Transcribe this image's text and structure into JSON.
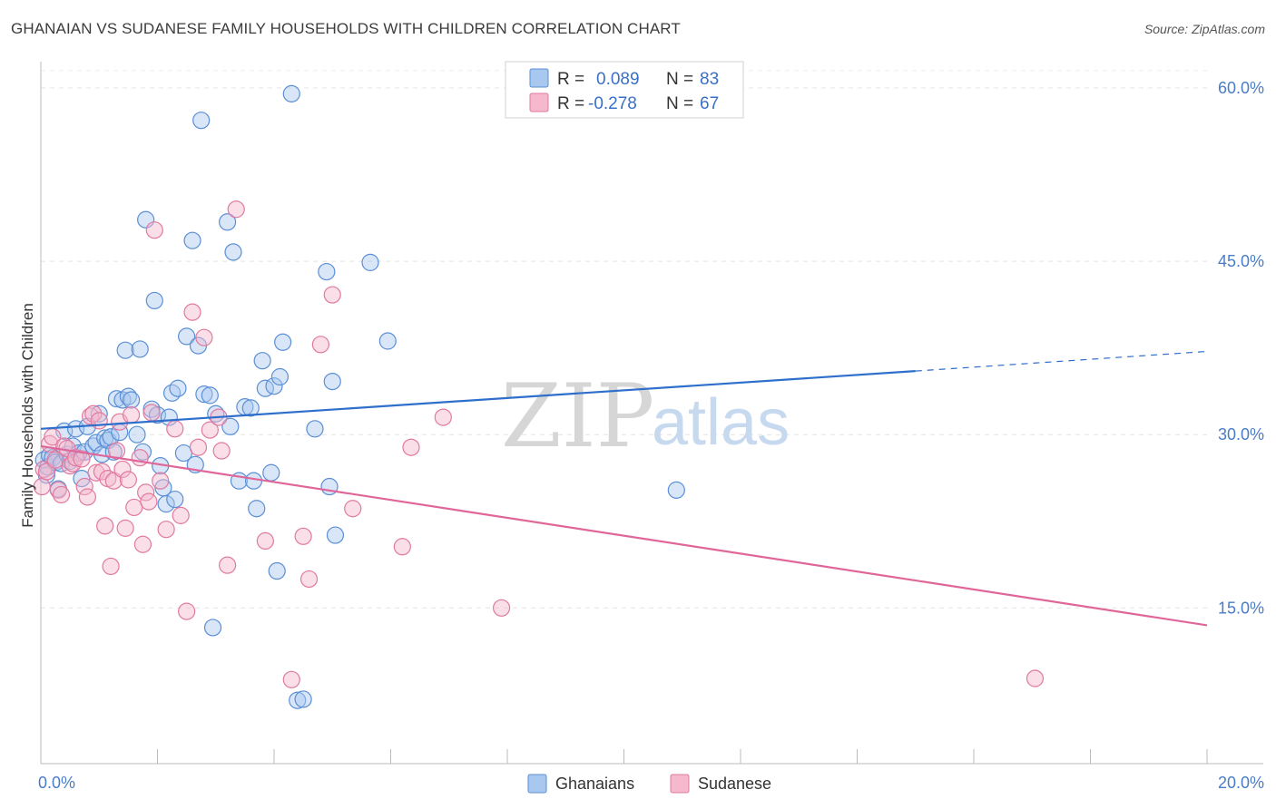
{
  "header": {
    "title": "GHANAIAN VS SUDANESE FAMILY HOUSEHOLDS WITH CHILDREN CORRELATION CHART",
    "source": "Source: ZipAtlas.com"
  },
  "watermark": {
    "zip": "ZIP",
    "atlas": "atlas"
  },
  "legend": {
    "r_label": "R =",
    "n_label": "N =",
    "rows": [
      {
        "name": "Ghanaians",
        "r": "0.089",
        "n": "83",
        "color": "#a8c8f0",
        "stroke": "#5a8fd6"
      },
      {
        "name": "Sudanese",
        "r": "-0.278",
        "n": "67",
        "color": "#f5b8cc",
        "stroke": "#e07aa0"
      }
    ]
  },
  "chart_data": {
    "type": "scatter",
    "title": "GHANAIAN VS SUDANESE FAMILY HOUSEHOLDS WITH CHILDREN CORRELATION CHART",
    "xlabel": "",
    "ylabel": "Family Households with Children",
    "xlim": [
      0,
      20
    ],
    "ylim": [
      0,
      61
    ],
    "x_tick_labels": [
      "0.0%",
      "20.0%"
    ],
    "y_ticks": [
      15,
      30,
      45,
      60
    ],
    "y_tick_labels": [
      "15.0%",
      "30.0%",
      "45.0%",
      "60.0%"
    ],
    "grid": "dashed horizontal",
    "series": [
      {
        "name": "Ghanaians",
        "color": "#5a8fd6",
        "fill": "rgba(168,200,240,0.45)",
        "trend": {
          "x0": 0,
          "y0": 30.5,
          "x1": 15,
          "y1": 35.5,
          "dash_to_x": 20,
          "dash_to_y": 37.2
        },
        "points": [
          [
            0.05,
            27.8
          ],
          [
            0.1,
            26.5
          ],
          [
            0.12,
            27.2
          ],
          [
            0.15,
            28.2
          ],
          [
            0.2,
            28
          ],
          [
            0.25,
            27.6
          ],
          [
            0.3,
            25.3
          ],
          [
            0.35,
            27.5
          ],
          [
            0.4,
            30.3
          ],
          [
            0.45,
            28.3
          ],
          [
            0.5,
            27.7
          ],
          [
            0.55,
            29
          ],
          [
            0.6,
            30.5
          ],
          [
            0.65,
            28.4
          ],
          [
            0.7,
            26.2
          ],
          [
            0.75,
            28.5
          ],
          [
            0.8,
            30.7
          ],
          [
            0.9,
            29
          ],
          [
            0.95,
            29.3
          ],
          [
            1,
            31.8
          ],
          [
            1.05,
            28.3
          ],
          [
            1.1,
            29.7
          ],
          [
            1.15,
            29.5
          ],
          [
            1.2,
            29.8
          ],
          [
            1.25,
            28.5
          ],
          [
            1.3,
            33.1
          ],
          [
            1.35,
            30.2
          ],
          [
            1.4,
            33
          ],
          [
            1.45,
            37.3
          ],
          [
            1.5,
            33.3
          ],
          [
            1.55,
            33
          ],
          [
            1.65,
            30
          ],
          [
            1.7,
            37.4
          ],
          [
            1.75,
            28.5
          ],
          [
            1.8,
            48.6
          ],
          [
            1.9,
            32.2
          ],
          [
            1.95,
            41.6
          ],
          [
            2,
            31.7
          ],
          [
            2.05,
            27.3
          ],
          [
            2.1,
            25.4
          ],
          [
            2.15,
            24
          ],
          [
            2.2,
            31.5
          ],
          [
            2.25,
            33.6
          ],
          [
            2.3,
            24.4
          ],
          [
            2.35,
            34
          ],
          [
            2.45,
            28.4
          ],
          [
            2.5,
            38.5
          ],
          [
            2.6,
            46.8
          ],
          [
            2.65,
            27.4
          ],
          [
            2.7,
            37.7
          ],
          [
            2.75,
            57.2
          ],
          [
            2.8,
            33.5
          ],
          [
            2.9,
            33.4
          ],
          [
            2.95,
            13.3
          ],
          [
            3,
            31.8
          ],
          [
            3.2,
            48.4
          ],
          [
            3.25,
            30.7
          ],
          [
            3.3,
            45.8
          ],
          [
            3.4,
            26
          ],
          [
            3.5,
            32.4
          ],
          [
            3.6,
            32.3
          ],
          [
            3.65,
            26
          ],
          [
            3.7,
            23.6
          ],
          [
            3.8,
            36.4
          ],
          [
            3.85,
            34
          ],
          [
            3.95,
            26.7
          ],
          [
            4,
            34.2
          ],
          [
            4.05,
            18.2
          ],
          [
            4.1,
            35
          ],
          [
            4.15,
            38
          ],
          [
            4.3,
            59.5
          ],
          [
            4.4,
            7
          ],
          [
            4.5,
            7.1
          ],
          [
            4.7,
            30.5
          ],
          [
            4.9,
            44.1
          ],
          [
            4.95,
            25.5
          ],
          [
            5,
            34.6
          ],
          [
            5.05,
            21.3
          ],
          [
            5.65,
            44.9
          ],
          [
            5.95,
            38.1
          ],
          [
            10.9,
            25.2
          ]
        ]
      },
      {
        "name": "Sudanese",
        "color": "#e07aa0",
        "fill": "rgba(245,184,204,0.45)",
        "trend": {
          "x0": 0,
          "y0": 29,
          "x1": 20,
          "y1": 13.5
        },
        "points": [
          [
            0.02,
            25.5
          ],
          [
            0.05,
            27
          ],
          [
            0.1,
            26.8
          ],
          [
            0.15,
            29.2
          ],
          [
            0.2,
            29.8
          ],
          [
            0.25,
            27.8
          ],
          [
            0.3,
            25.2
          ],
          [
            0.35,
            24.8
          ],
          [
            0.4,
            29
          ],
          [
            0.45,
            28.8
          ],
          [
            0.5,
            27.3
          ],
          [
            0.55,
            27.5
          ],
          [
            0.6,
            28
          ],
          [
            0.7,
            27.9
          ],
          [
            0.75,
            25.5
          ],
          [
            0.8,
            24.6
          ],
          [
            0.85,
            31.6
          ],
          [
            0.9,
            31.8
          ],
          [
            0.95,
            26.7
          ],
          [
            1,
            31.2
          ],
          [
            1.05,
            26.8
          ],
          [
            1.1,
            22.1
          ],
          [
            1.15,
            26.2
          ],
          [
            1.2,
            18.6
          ],
          [
            1.25,
            26
          ],
          [
            1.3,
            28.6
          ],
          [
            1.35,
            31.1
          ],
          [
            1.4,
            27
          ],
          [
            1.45,
            21.9
          ],
          [
            1.5,
            26.1
          ],
          [
            1.55,
            31.7
          ],
          [
            1.6,
            23.7
          ],
          [
            1.7,
            28
          ],
          [
            1.75,
            20.5
          ],
          [
            1.8,
            25
          ],
          [
            1.85,
            24.2
          ],
          [
            1.9,
            31.9
          ],
          [
            1.95,
            47.7
          ],
          [
            2.05,
            26
          ],
          [
            2.15,
            21.8
          ],
          [
            2.3,
            30.5
          ],
          [
            2.4,
            23
          ],
          [
            2.5,
            14.7
          ],
          [
            2.6,
            40.6
          ],
          [
            2.7,
            28.9
          ],
          [
            2.8,
            38.4
          ],
          [
            2.9,
            30.4
          ],
          [
            3.05,
            31.5
          ],
          [
            3.1,
            28.6
          ],
          [
            3.2,
            18.7
          ],
          [
            3.35,
            49.5
          ],
          [
            3.85,
            20.8
          ],
          [
            4.3,
            8.8
          ],
          [
            4.5,
            21.2
          ],
          [
            4.6,
            17.5
          ],
          [
            4.8,
            37.8
          ],
          [
            5,
            42.1
          ],
          [
            5.35,
            23.6
          ],
          [
            6.2,
            20.3
          ],
          [
            6.35,
            28.9
          ],
          [
            6.9,
            31.5
          ],
          [
            7.9,
            15
          ],
          [
            17.05,
            8.9
          ]
        ]
      }
    ]
  },
  "bottom_legend": [
    {
      "label": "Ghanaians",
      "fill": "#a8c8f0",
      "stroke": "#5a8fd6"
    },
    {
      "label": "Sudanese",
      "fill": "#f5b8cc",
      "stroke": "#e07aa0"
    }
  ]
}
